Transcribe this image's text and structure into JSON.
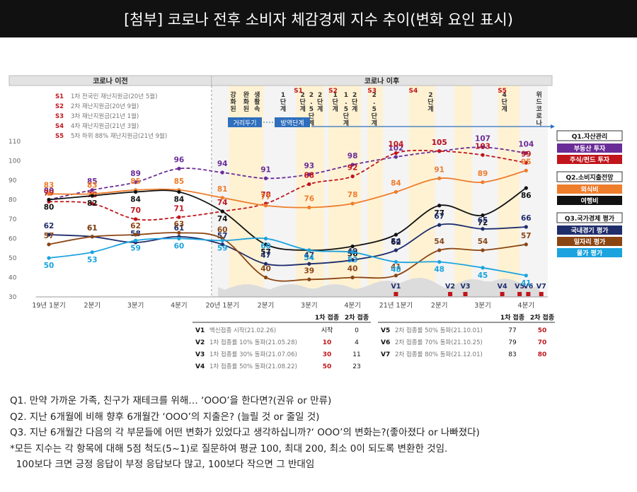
{
  "title": "[첨부] 코로나 전후 소비자 체감경제 지수 추이(변화 요인 표시)",
  "chart_data": {
    "type": "line",
    "categories": [
      "19년 1분기",
      "2분기",
      "3분기",
      "4분기",
      "20년 1분기",
      "2분기",
      "3분기",
      "4분기",
      "21년 1분기",
      "2분기",
      "3분기",
      "4분기"
    ],
    "ylim": [
      30,
      110
    ],
    "yticks": [
      30,
      40,
      50,
      60,
      70,
      80,
      90,
      100,
      110
    ],
    "era_labels": {
      "before": "코로나 이전",
      "after": "코로나 이후"
    },
    "support_legend": [
      {
        "code": "S1",
        "text": "1차 전국민 재난지원금(20년 5월)"
      },
      {
        "code": "S2",
        "text": "2차 재난지원금(20년 9월)"
      },
      {
        "code": "S3",
        "text": "3차 재난지원금(21년 1월)"
      },
      {
        "code": "S4",
        "text": "4차 재난지원금(21년 3월)"
      },
      {
        "code": "S5",
        "text": "5차 하위 88% 재난지원금(21년 9월)"
      }
    ],
    "events": [
      {
        "x": 4.25,
        "label": "강화된"
      },
      {
        "x": 4.55,
        "label": "완화된"
      },
      {
        "x": 4.8,
        "label": "생활속"
      },
      {
        "x": 5.4,
        "label": "1단계"
      },
      {
        "x": 5.85,
        "label": "2단계"
      },
      {
        "x": 6.05,
        "label": "2.5단계"
      },
      {
        "x": 6.25,
        "label": "2단계"
      },
      {
        "x": 6.6,
        "label": "1단계"
      },
      {
        "x": 6.85,
        "label": "1.5단계"
      },
      {
        "x": 7.05,
        "label": "2단계"
      },
      {
        "x": 7.5,
        "label": "2.5단계"
      },
      {
        "x": 8.8,
        "label": "2단계"
      },
      {
        "x": 10.5,
        "label": "4단계"
      },
      {
        "x": 11.3,
        "label": "위드코로나"
      }
    ],
    "s_markers": [
      {
        "x": 5.75,
        "label": "S1"
      },
      {
        "x": 6.55,
        "label": "S2"
      },
      {
        "x": 7.45,
        "label": "S3"
      },
      {
        "x": 8.4,
        "label": "S4"
      },
      {
        "x": 10.45,
        "label": "S5"
      }
    ],
    "phase_labels": {
      "distancing": "거리두기",
      "quarantine": "방역단계"
    },
    "v_markers": [
      {
        "x": 8.0,
        "label": "V1"
      },
      {
        "x": 9.25,
        "label": "V2"
      },
      {
        "x": 9.6,
        "label": "V3"
      },
      {
        "x": 10.45,
        "label": "V4"
      },
      {
        "x": 10.85,
        "label": "V5"
      },
      {
        "x": 11.05,
        "label": "V6"
      },
      {
        "x": 11.35,
        "label": "V7"
      }
    ],
    "series": [
      {
        "name": "부동산 투자",
        "group": "Q1.자산관리",
        "color": "#6a2c96",
        "dash": true,
        "values": [
          80,
          85,
          89,
          96,
          94,
          91,
          93,
          98,
          102,
          105,
          107,
          104
        ]
      },
      {
        "name": "주식/펀드 투자",
        "group": "Q1.자산관리",
        "color": "#c0151b",
        "dash": true,
        "values": [
          79,
          78,
          70,
          71,
          74,
          78,
          88,
          92,
          104,
          105,
          103,
          99
        ]
      },
      {
        "name": "외식비",
        "group": "Q2.소비지출전망",
        "color": "#ee7d2c",
        "dash": false,
        "values": [
          83,
          83,
          85,
          85,
          81,
          77,
          76,
          78,
          84,
          91,
          89,
          95
        ]
      },
      {
        "name": "여행비",
        "group": "Q2.소비지출전망",
        "color": "#111111",
        "dash": false,
        "values": [
          80,
          82,
          84,
          84,
          74,
          57,
          54,
          56,
          62,
          77,
          72,
          86
        ]
      },
      {
        "name": "국내경기 평가",
        "group": "Q3.국가경제 평가",
        "color": "#1f2d6b",
        "dash": false,
        "values": [
          62,
          61,
          58,
          61,
          57,
          47,
          47,
          49,
          54,
          67,
          65,
          66
        ]
      },
      {
        "name": "일자리 평가",
        "group": "Q3.국가경제 평가",
        "color": "#8b4513",
        "dash": false,
        "values": [
          57,
          61,
          62,
          63,
          60,
          40,
          39,
          40,
          41,
          54,
          54,
          57
        ]
      },
      {
        "name": "물가 평가",
        "group": "Q3.국가경제 평가",
        "color": "#1aa3de",
        "dash": false,
        "values": [
          50,
          53,
          59,
          60,
          59,
          60,
          54,
          53,
          48,
          48,
          45,
          41
        ]
      }
    ],
    "legend_groups": [
      {
        "title": "Q1.자산관리",
        "items": [
          "부동산 투자",
          "주식/펀드 투자"
        ]
      },
      {
        "title": "Q2.소비지출전망",
        "items": [
          "외식비",
          "여행비"
        ]
      },
      {
        "title": "Q3.국가경제 평가",
        "items": [
          "국내경기 평가",
          "일자리 평가",
          "물가 평가"
        ]
      }
    ],
    "vaccine_table": {
      "col_headers": [
        "1차 접종",
        "2차 접종"
      ],
      "rows_left": [
        {
          "code": "V1",
          "text": "백신접종 시작(21.02.26)",
          "c1": "시작",
          "c2": "0"
        },
        {
          "code": "V2",
          "text": "1차 접종률 10% 돌파(21.05.28)",
          "c1": "10",
          "c2": "4"
        },
        {
          "code": "V3",
          "text": "1차 접종률 30% 돌파(21.07.06)",
          "c1": "30",
          "c2": "11"
        },
        {
          "code": "V4",
          "text": "1차 접종률 50% 돌파(21.08.22)",
          "c1": "50",
          "c2": "23"
        }
      ],
      "rows_right": [
        {
          "code": "V5",
          "text": "2차 접종률 50% 돌파(21.10.01)",
          "c1": "77",
          "c2": "50"
        },
        {
          "code": "V6",
          "text": "2차 접종률 70% 돌파(21.10.25)",
          "c1": "79",
          "c2": "70"
        },
        {
          "code": "V7",
          "text": "2차 접종률 80% 돌파(21.12.01)",
          "c1": "83",
          "c2": "80"
        }
      ]
    }
  },
  "notes": [
    "Q1. 만약 가까운 가족, 친구가 재테크를 위해… ‘OOO’을 한다면?(권유 or 만류)",
    "Q2. 지난 6개월에 비해 향후 6개월간 ‘OOO’의 지출은? (늘릴 것 or 줄일 것)",
    "Q3. 지난 6개월간 다음의 각 부문들에 어떤 변화가 있었다고 생각하십니까?‘ OOO’의 변화는?(좋아졌다 or 나빠졌다)",
    "*모든 지수는 각 항목에 대해 5점 척도(5~1)로 질문하여 평균 100, 최대 200, 최소 0이 되도록 변환한 것임.",
    "  100보다 크면 긍정 응답이 부정 응답보다 많고, 100보다 작으면 그 반대임"
  ]
}
